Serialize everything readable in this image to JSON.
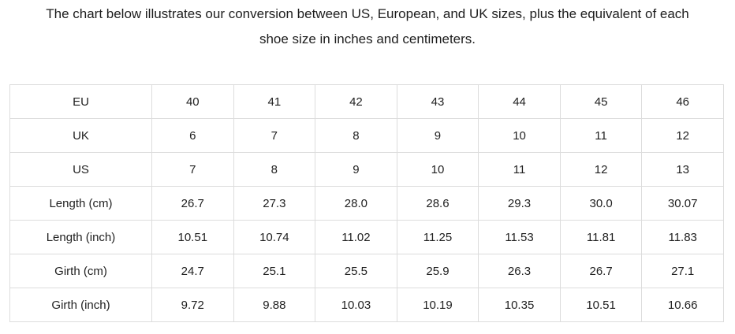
{
  "heading": {
    "text": "The chart below illustrates our conversion between US, European, and UK sizes, plus the equivalent of each shoe size in inches and centimeters."
  },
  "table": {
    "rows": [
      {
        "label": "EU",
        "values": [
          "40",
          "41",
          "42",
          "43",
          "44",
          "45",
          "46"
        ]
      },
      {
        "label": "UK",
        "values": [
          "6",
          "7",
          "8",
          "9",
          "10",
          "11",
          "12"
        ]
      },
      {
        "label": "US",
        "values": [
          "7",
          "8",
          "9",
          "10",
          "11",
          "12",
          "13"
        ]
      },
      {
        "label": "Length (cm)",
        "values": [
          "26.7",
          "27.3",
          "28.0",
          "28.6",
          "29.3",
          "30.0",
          "30.07"
        ]
      },
      {
        "label": "Length (inch)",
        "values": [
          "10.51",
          "10.74",
          "11.02",
          "11.25",
          "11.53",
          "11.81",
          "11.83"
        ]
      },
      {
        "label": "Girth (cm)",
        "values": [
          "24.7",
          "25.1",
          "25.5",
          "25.9",
          "26.3",
          "26.7",
          "27.1"
        ]
      },
      {
        "label": "Girth (inch)",
        "values": [
          "9.72",
          "9.88",
          "10.03",
          "10.19",
          "10.35",
          "10.51",
          "10.66"
        ]
      }
    ]
  },
  "colors": {
    "background": "#ffffff",
    "border": "#dcdcdc",
    "text": "#1f1f1f"
  },
  "chart_data": {
    "type": "table",
    "title": "The chart below illustrates our conversion between US, European, and UK sizes, plus the equivalent of each shoe size in inches and centimeters.",
    "row_headers": [
      "EU",
      "UK",
      "US",
      "Length (cm)",
      "Length (inch)",
      "Girth (cm)",
      "Girth (inch)"
    ],
    "rows": [
      [
        40,
        41,
        42,
        43,
        44,
        45,
        46
      ],
      [
        6,
        7,
        8,
        9,
        10,
        11,
        12
      ],
      [
        7,
        8,
        9,
        10,
        11,
        12,
        13
      ],
      [
        26.7,
        27.3,
        28.0,
        28.6,
        29.3,
        30.0,
        30.07
      ],
      [
        10.51,
        10.74,
        11.02,
        11.25,
        11.53,
        11.81,
        11.83
      ],
      [
        24.7,
        25.1,
        25.5,
        25.9,
        26.3,
        26.7,
        27.1
      ],
      [
        9.72,
        9.88,
        10.03,
        10.19,
        10.35,
        10.51,
        10.66
      ]
    ],
    "grid": true,
    "legend": false
  }
}
